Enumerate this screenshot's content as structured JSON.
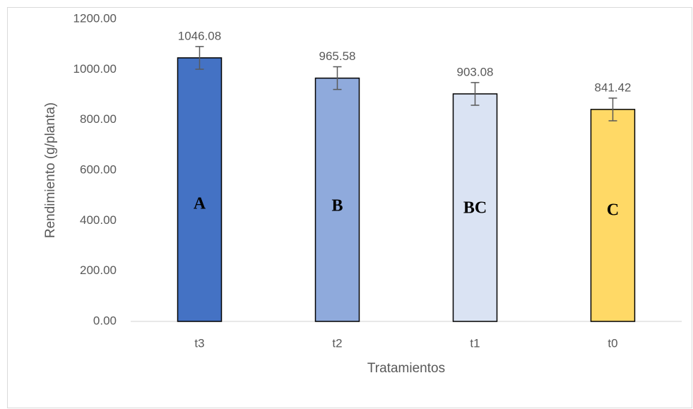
{
  "chart_data": {
    "type": "bar",
    "x_label": "Tratamientos",
    "y_label": "Rendimiento (g/planta)",
    "categories": [
      "t3",
      "t2",
      "t1",
      "t0"
    ],
    "values": [
      1046.08,
      965.58,
      903.08,
      841.42
    ],
    "errors": [
      45,
      45,
      45,
      45
    ],
    "colors": [
      "#4472c4",
      "#8faadc",
      "#dae3f3",
      "#ffd966"
    ],
    "annotations": [
      "A",
      "B",
      "BC",
      "C"
    ],
    "ylim": [
      0,
      1200
    ],
    "yticks": [
      {
        "value": 0,
        "label": "0.00"
      },
      {
        "value": 200,
        "label": "200.00"
      },
      {
        "value": 400,
        "label": "400.00"
      },
      {
        "value": 600,
        "label": "600.00"
      },
      {
        "value": 800,
        "label": "800.00"
      },
      {
        "value": 1000,
        "label": "1000.00"
      },
      {
        "value": 1200,
        "label": "1200.00"
      }
    ],
    "grid": false
  }
}
